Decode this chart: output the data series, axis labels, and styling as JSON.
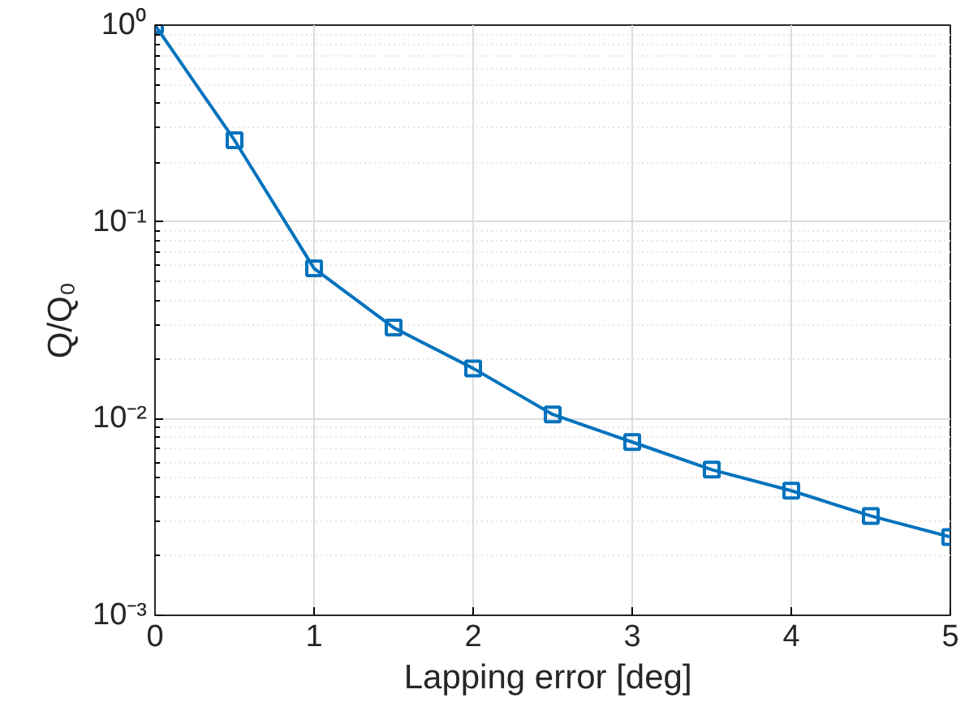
{
  "chart_data": {
    "type": "line",
    "xlabel": "Lapping  error [deg]",
    "ylabel": "Q/Q₀",
    "x": [
      0,
      0.5,
      1,
      1.5,
      2,
      2.5,
      3,
      3.5,
      4,
      4.5,
      5
    ],
    "series": [
      {
        "color": "#0072bd",
        "values": [
          1.0,
          0.26,
          0.058,
          0.029,
          0.018,
          0.0105,
          0.0076,
          0.0055,
          0.0043,
          0.0032,
          0.0025
        ]
      }
    ],
    "xlim": [
      0,
      5
    ],
    "xticks": [
      0,
      1,
      2,
      3,
      4,
      5
    ],
    "ylim": [
      0.001,
      1
    ],
    "yticks": [
      {
        "value": 0.001,
        "label": "10⁻³"
      },
      {
        "value": 0.01,
        "label": "10⁻²"
      },
      {
        "value": 0.1,
        "label": "10⁻¹"
      },
      {
        "value": 1,
        "label": "10⁰"
      }
    ],
    "log": "y",
    "grid": true,
    "marker": "square",
    "line_style": "solid"
  }
}
